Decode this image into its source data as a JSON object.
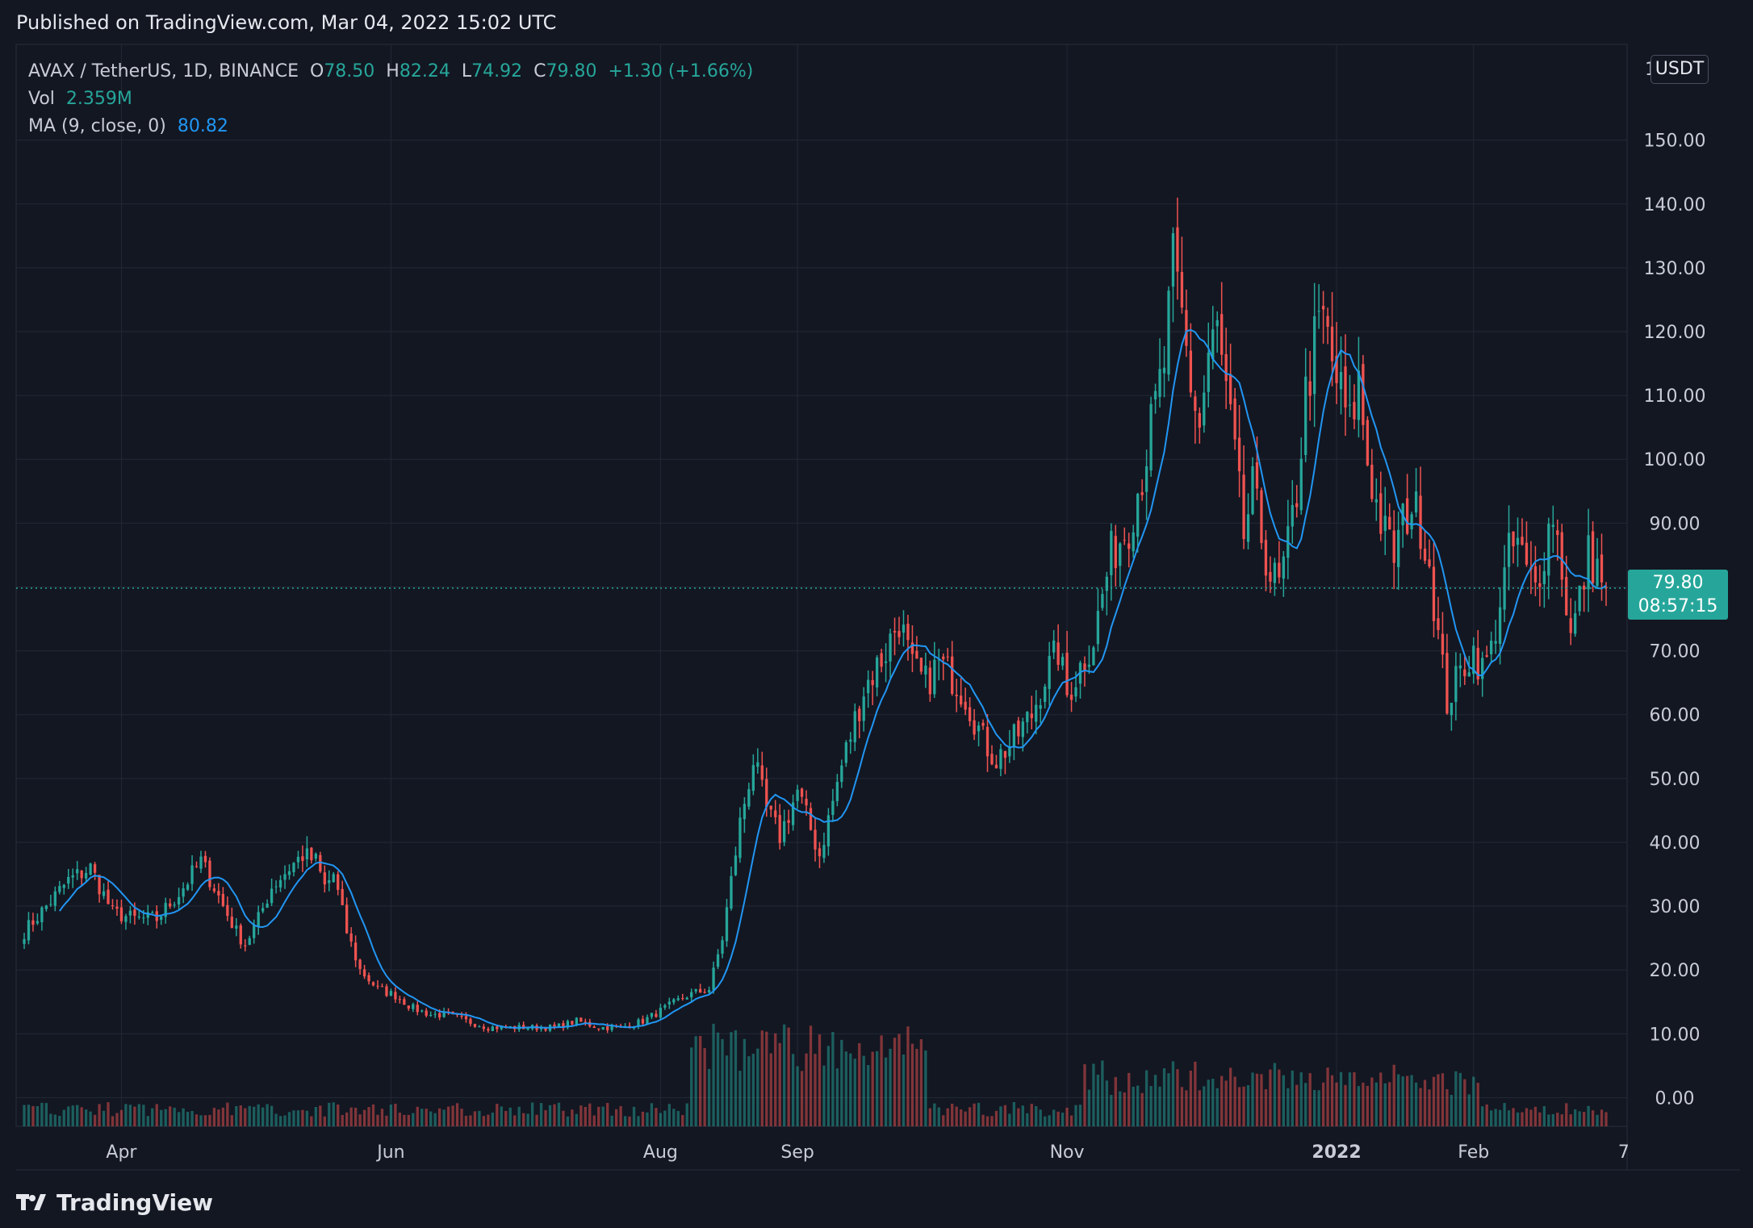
{
  "header": {
    "published": "Published on TradingView.com, Mar 04, 2022 15:02 UTC"
  },
  "legend": {
    "symbol": "AVAX / TetherUS, 1D, BINANCE",
    "open_label": "O",
    "open": "78.50",
    "high_label": "H",
    "high": "82.24",
    "low_label": "L",
    "low": "74.92",
    "close_label": "C",
    "close": "79.80",
    "change": "+1.30 (+1.66%)",
    "vol_label": "Vol",
    "vol": "2.359M",
    "ma_label": "MA (9, close, 0)",
    "ma": "80.82"
  },
  "price_scale": {
    "currency_button": "USDT",
    "clipped_top_label": "1"
  },
  "last_price": {
    "value": "79.80",
    "countdown": "08:57:15"
  },
  "footer": {
    "brand": "TradingView"
  },
  "colors": {
    "background": "#131722",
    "up": "#26a69a",
    "down": "#ef5350",
    "ma": "#2196f3",
    "grid": "#232836"
  },
  "chart_data": {
    "type": "candlestick",
    "title": "AVAX / TetherUS, 1D, BINANCE",
    "ylim": [
      -4.5,
      165
    ],
    "yticks": [
      "150.00",
      "140.00",
      "130.00",
      "120.00",
      "110.00",
      "100.00",
      "90.00",
      "80.00",
      "70.00",
      "60.00",
      "50.00",
      "40.00",
      "30.00",
      "20.00",
      "10.00",
      "0.00"
    ],
    "ytick_values": [
      150,
      140,
      130,
      120,
      110,
      100,
      90,
      80,
      70,
      60,
      50,
      40,
      30,
      20,
      10,
      0
    ],
    "xticks": [
      "Apr",
      "Jun",
      "Aug",
      "Sep",
      "Nov",
      "2022",
      "Feb",
      "7"
    ],
    "xtick_days": [
      22,
      83,
      144,
      175,
      236,
      297,
      328,
      362
    ],
    "close_anchors": [
      [
        0,
        26
      ],
      [
        5,
        30
      ],
      [
        10,
        34
      ],
      [
        15,
        36
      ],
      [
        20,
        29
      ],
      [
        25,
        28
      ],
      [
        30,
        28
      ],
      [
        35,
        32
      ],
      [
        40,
        37
      ],
      [
        43,
        33
      ],
      [
        45,
        30
      ],
      [
        48,
        26
      ],
      [
        50,
        24
      ],
      [
        53,
        28
      ],
      [
        56,
        33
      ],
      [
        60,
        36
      ],
      [
        63,
        38
      ],
      [
        66,
        37
      ],
      [
        68,
        33
      ],
      [
        70,
        35
      ],
      [
        73,
        26
      ],
      [
        76,
        20
      ],
      [
        80,
        17
      ],
      [
        84,
        16
      ],
      [
        88,
        14
      ],
      [
        92,
        13
      ],
      [
        96,
        13
      ],
      [
        100,
        12
      ],
      [
        105,
        11
      ],
      [
        110,
        11
      ],
      [
        115,
        11
      ],
      [
        120,
        11
      ],
      [
        125,
        12
      ],
      [
        130,
        11
      ],
      [
        135,
        11
      ],
      [
        140,
        12
      ],
      [
        145,
        14
      ],
      [
        150,
        16
      ],
      [
        155,
        17
      ],
      [
        158,
        25
      ],
      [
        162,
        43
      ],
      [
        165,
        53
      ],
      [
        168,
        45
      ],
      [
        171,
        41
      ],
      [
        175,
        48
      ],
      [
        180,
        38
      ],
      [
        185,
        52
      ],
      [
        190,
        64
      ],
      [
        195,
        70
      ],
      [
        198,
        75
      ],
      [
        201,
        67
      ],
      [
        204,
        65
      ],
      [
        207,
        68
      ],
      [
        210,
        66
      ],
      [
        213,
        63
      ],
      [
        217,
        56
      ],
      [
        220,
        53
      ],
      [
        224,
        56
      ],
      [
        228,
        60
      ],
      [
        231,
        66
      ],
      [
        234,
        70
      ],
      [
        236,
        63
      ],
      [
        238,
        66
      ],
      [
        242,
        72
      ],
      [
        246,
        85
      ],
      [
        250,
        90
      ],
      [
        253,
        98
      ],
      [
        256,
        108
      ],
      [
        258,
        115
      ],
      [
        260,
        130
      ],
      [
        262,
        122
      ],
      [
        264,
        112
      ],
      [
        266,
        105
      ],
      [
        268,
        116
      ],
      [
        270,
        120
      ],
      [
        272,
        110
      ],
      [
        274,
        100
      ],
      [
        276,
        88
      ],
      [
        278,
        95
      ],
      [
        280,
        88
      ],
      [
        282,
        82
      ],
      [
        284,
        80
      ],
      [
        286,
        86
      ],
      [
        288,
        95
      ],
      [
        290,
        110
      ],
      [
        292,
        118
      ],
      [
        294,
        122
      ],
      [
        296,
        115
      ],
      [
        298,
        110
      ],
      [
        300,
        105
      ],
      [
        302,
        112
      ],
      [
        304,
        100
      ],
      [
        306,
        93
      ],
      [
        308,
        88
      ],
      [
        310,
        85
      ],
      [
        312,
        90
      ],
      [
        314,
        93
      ],
      [
        316,
        90
      ],
      [
        318,
        84
      ],
      [
        320,
        72
      ],
      [
        322,
        62
      ],
      [
        324,
        65
      ],
      [
        326,
        68
      ],
      [
        328,
        70
      ],
      [
        330,
        67
      ],
      [
        332,
        70
      ],
      [
        334,
        78
      ],
      [
        336,
        85
      ],
      [
        338,
        87
      ],
      [
        340,
        82
      ],
      [
        342,
        80
      ],
      [
        344,
        86
      ],
      [
        346,
        92
      ],
      [
        348,
        83
      ],
      [
        350,
        72
      ],
      [
        352,
        78
      ],
      [
        354,
        85
      ],
      [
        356,
        83
      ],
      [
        358,
        79.8
      ]
    ],
    "volume_axis_label": "Vol",
    "ma_period": 9,
    "last_close": 79.8
  }
}
